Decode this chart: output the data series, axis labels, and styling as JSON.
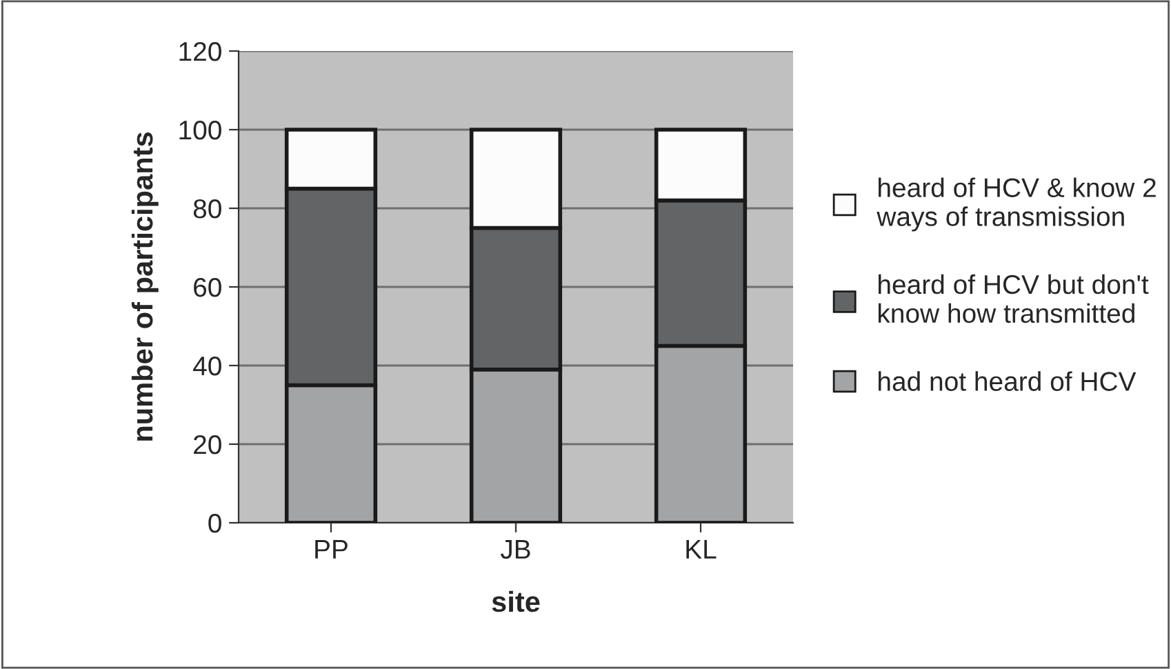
{
  "chart_data": {
    "type": "bar",
    "stacked": true,
    "xlabel": "site",
    "ylabel": "number of participants",
    "categories": [
      "PP",
      "JB",
      "KL"
    ],
    "series": [
      {
        "name": "had not heard of HCV",
        "color": "#a3a4a6",
        "values": [
          35,
          39,
          45
        ]
      },
      {
        "name": "heard of HCV but don't know how transmitted",
        "color": "#636466",
        "values": [
          50,
          36,
          37
        ]
      },
      {
        "name": "heard of HCV & know 2 ways of transmission",
        "color": "#fcfcfc",
        "values": [
          15,
          25,
          18
        ]
      }
    ],
    "ylim": [
      0,
      120
    ],
    "yticks": [
      0,
      20,
      40,
      60,
      80,
      100,
      120
    ],
    "grid": "y",
    "legend": "right"
  }
}
